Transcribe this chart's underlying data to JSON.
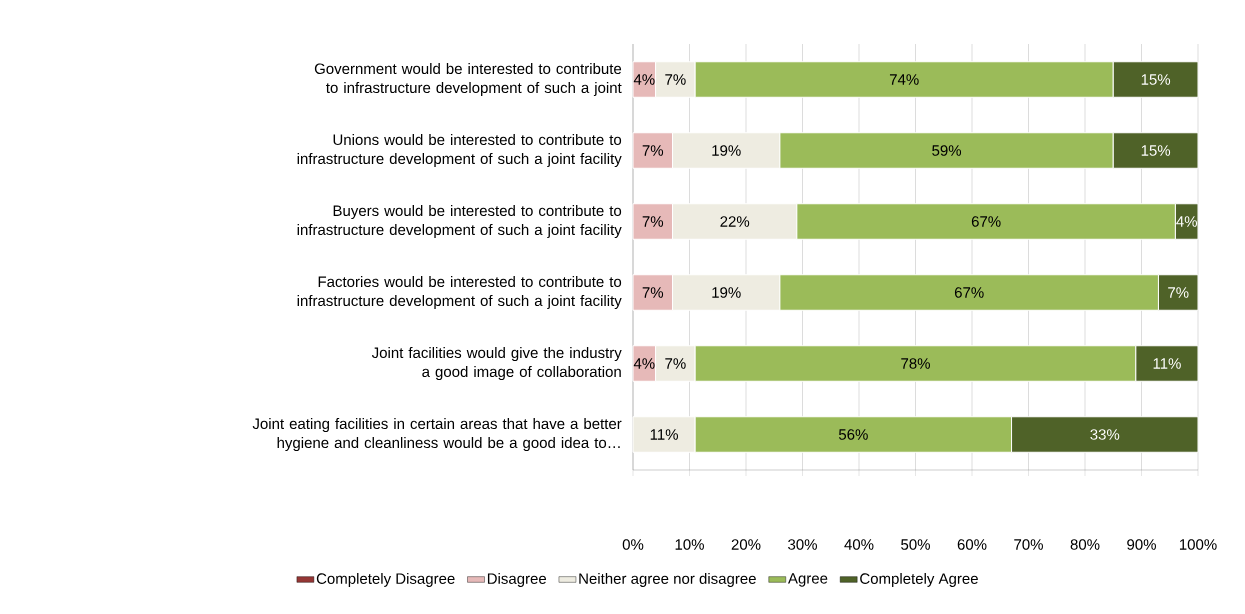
{
  "chart_data": {
    "type": "bar",
    "orientation": "horizontal",
    "stacked": true,
    "categories": [
      "Government would be interested to contribute to infrastructure development of such a joint",
      "Unions would be interested to contribute to infrastructure development of such a joint facility",
      "Buyers would be interested to contribute to infrastructure development of such a joint facility",
      "Factories would be interested to contribute to infrastructure development of such a joint facility",
      "Joint facilities would give the industry a good image of collaboration",
      "Joint eating facilities in certain areas that have a better hygiene and cleanliness would be a good idea to…"
    ],
    "series": [
      {
        "name": "Completely Disagree",
        "color": "#953735",
        "values": [
          null,
          null,
          null,
          null,
          null,
          null
        ]
      },
      {
        "name": "Disagree",
        "color": "#e6b9b8",
        "values": [
          4,
          7,
          7,
          7,
          4,
          null
        ],
        "value_labels": [
          "4%",
          "7%",
          "7%",
          "7%",
          "4%",
          null
        ]
      },
      {
        "name": "Neither agree nor disagree",
        "color": "#eeece1",
        "values": [
          7,
          19,
          22,
          19,
          7,
          11
        ],
        "value_labels": [
          "7%",
          "19%",
          "22%",
          "19%",
          "7%",
          "11%"
        ]
      },
      {
        "name": "Agree",
        "color": "#9bbb59",
        "values": [
          74,
          59,
          67,
          67,
          78,
          56
        ],
        "value_labels": [
          "74%",
          "59%",
          "67%",
          "67%",
          "78%",
          "56%"
        ]
      },
      {
        "name": "Completely Agree",
        "color": "#4f6228",
        "values": [
          15,
          15,
          4,
          7,
          11,
          33
        ],
        "value_labels": [
          "15%",
          "15%",
          "4%",
          "7%",
          "11%",
          "33%"
        ]
      }
    ],
    "xlim": [
      0,
      100
    ],
    "xticks": [
      {
        "value": 0,
        "label": "0%"
      },
      {
        "value": 10,
        "label": "10%"
      },
      {
        "value": 20,
        "label": "20%"
      },
      {
        "value": 30,
        "label": "30%"
      },
      {
        "value": 40,
        "label": "40%"
      },
      {
        "value": 50,
        "label": "50%"
      },
      {
        "value": 60,
        "label": "60%"
      },
      {
        "value": 70,
        "label": "70%"
      },
      {
        "value": 80,
        "label": "80%"
      },
      {
        "value": 90,
        "label": "90%"
      },
      {
        "value": 100,
        "label": "100%"
      }
    ],
    "grid": "x",
    "legend": "bottom"
  }
}
